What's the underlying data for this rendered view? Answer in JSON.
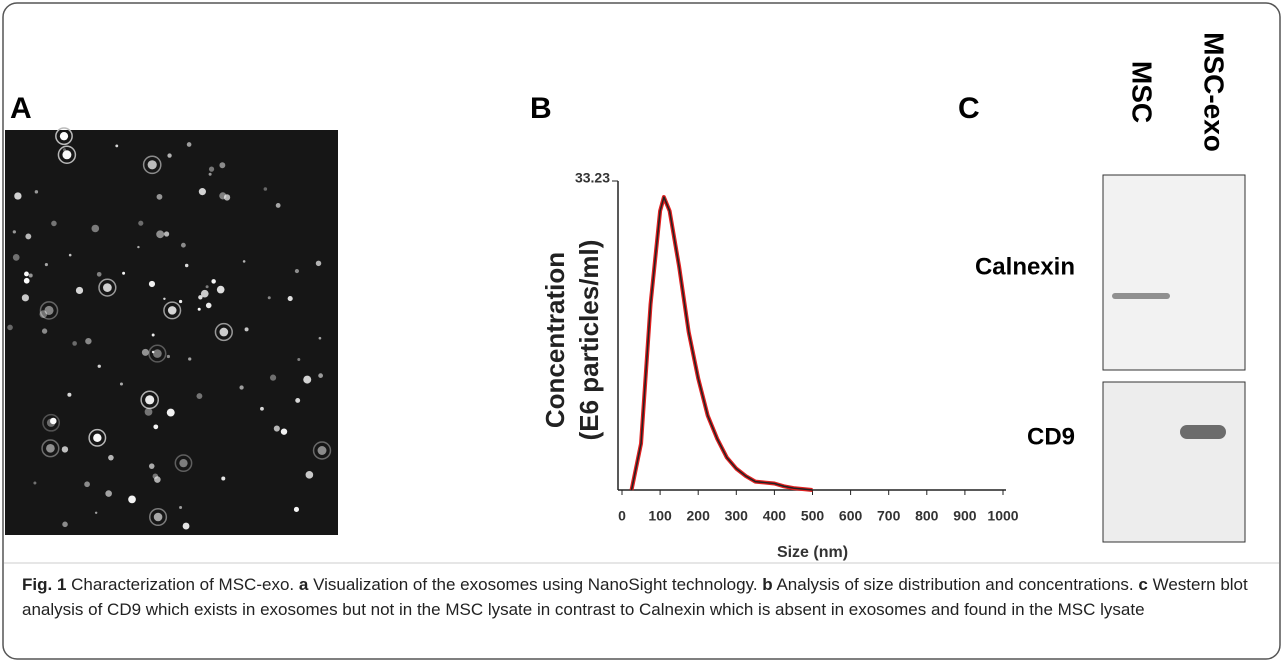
{
  "panels": {
    "a": "A",
    "b": "B",
    "c": "C"
  },
  "blot": {
    "lanes": [
      "MSC",
      "MSC-exo"
    ],
    "rows": [
      "Calnexin",
      "CD9"
    ]
  },
  "caption": {
    "label": "Fig. 1",
    "title": "Characterization of MSC-exo.",
    "parts": [
      {
        "key": "a",
        "text": "Visualization of the exosomes using NanoSight technology."
      },
      {
        "key": "b",
        "text": "Analysis of size distribution and concentrations."
      },
      {
        "key": "c",
        "text": "Western blot analysis of CD9 which exists in exosomes but not in the MSC lysate in contrast to Calnexin which is absent in exosomes and found in the MSC lysate"
      }
    ]
  },
  "chart_data": {
    "type": "line",
    "x_label": "Size (nm)",
    "y_label": [
      "Concentration",
      "(E6 particles/ml)"
    ],
    "x": [
      25,
      50,
      75,
      100,
      110,
      125,
      150,
      175,
      200,
      225,
      250,
      275,
      300,
      325,
      350,
      375,
      400,
      425,
      450,
      500
    ],
    "values": [
      0,
      5,
      20,
      30,
      31.5,
      30,
      24,
      17,
      12,
      8,
      5.5,
      3.5,
      2.3,
      1.5,
      0.9,
      0.8,
      0.7,
      0.4,
      0.2,
      0
    ],
    "color": "#222222",
    "band_color": "#e02020",
    "xlim": [
      0,
      1000
    ],
    "xticks": [
      0,
      100,
      200,
      300,
      400,
      500,
      600,
      700,
      800,
      900,
      1000
    ],
    "ylim": [
      0,
      33.23
    ],
    "yticks": [
      33.23
    ]
  }
}
